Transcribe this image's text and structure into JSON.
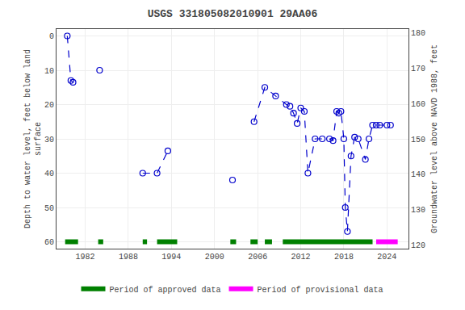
{
  "chart_data": {
    "type": "line",
    "title": "USGS 331805082010901 29AA06",
    "ylabel": "Depth to water level, feet below land\nsurface",
    "y2label": "Groundwater level above NAVD 1988, feet",
    "xlim": [
      1978,
      2027
    ],
    "xticks": [
      1982,
      1988,
      1994,
      2000,
      2006,
      2012,
      2018,
      2024
    ],
    "ylim": [
      62,
      -2
    ],
    "yticks": [
      0,
      10,
      20,
      30,
      40,
      50,
      60
    ],
    "y2lim": [
      119,
      181
    ],
    "y2ticks": [
      120,
      130,
      140,
      150,
      160,
      170,
      180
    ],
    "grid": true,
    "legend": "bottom",
    "series": [
      {
        "color": "#0000CC",
        "line_style": "dashed",
        "marker": "circle-open",
        "x": [
          1979.5,
          1980.0,
          1980.3
        ],
        "values": [
          0.0,
          13.0,
          13.5
        ]
      },
      {
        "color": "#0000CC",
        "line_style": "dashed",
        "marker": "circle-open",
        "x": [
          1984.0
        ],
        "values": [
          10.0
        ]
      },
      {
        "color": "#0000CC",
        "line_style": "dashed",
        "marker": "circle-open",
        "x": [
          1990.0,
          1992.0,
          1993.5
        ],
        "values": [
          40.0,
          40.0,
          33.5
        ]
      },
      {
        "color": "#0000CC",
        "line_style": "dashed",
        "marker": "circle-open",
        "x": [
          2002.5
        ],
        "values": [
          42.0
        ]
      },
      {
        "color": "#0000CC",
        "line_style": "dashed",
        "marker": "circle-open",
        "x": [
          2005.5,
          2007.0,
          2008.5,
          2010.0,
          2010.5,
          2011.0,
          2011.5,
          2012.0,
          2012.5,
          2013.0,
          2014.0,
          2015.0,
          2016.0,
          2016.5,
          2017.0,
          2017.3,
          2017.6,
          2018.0,
          2018.2,
          2018.5,
          2019.0,
          2019.5,
          2020.0,
          2021.0,
          2021.5,
          2022.0,
          2022.5,
          2023.0,
          2024.0,
          2024.5
        ],
        "values": [
          25.0,
          15.0,
          17.5,
          20.0,
          20.5,
          22.5,
          25.5,
          21.0,
          22.0,
          40.0,
          30.0,
          30.0,
          30.0,
          30.5,
          22.0,
          22.5,
          22.0,
          30.0,
          50.0,
          57.0,
          35.0,
          29.5,
          30.0,
          36.0,
          30.0,
          26.0,
          26.0,
          26.0,
          26.0,
          26.0
        ]
      }
    ],
    "periods": [
      {
        "name": "Period of approved data",
        "color": "#008000",
        "level": 60,
        "ranges": [
          [
            1979.2,
            1981.0
          ],
          [
            1983.8,
            1984.5
          ],
          [
            1990.0,
            1990.6
          ],
          [
            1992.0,
            1994.8
          ],
          [
            2002.2,
            2003.0
          ],
          [
            2005.0,
            2006.0
          ],
          [
            2007.0,
            2008.0
          ],
          [
            2009.5,
            2022.0
          ]
        ]
      },
      {
        "name": "Period of provisional data",
        "color": "#FF00FF",
        "level": 60,
        "ranges": [
          [
            2022.5,
            2025.5
          ]
        ]
      }
    ]
  }
}
